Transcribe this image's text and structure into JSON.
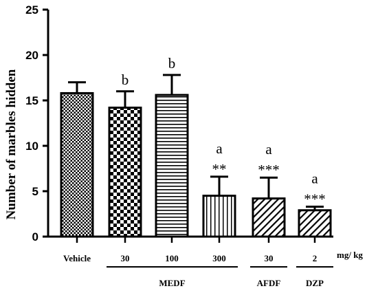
{
  "chart_data": {
    "type": "bar",
    "ylabel": "Number of marbles hidden",
    "ylim": [
      0,
      25
    ],
    "yticks": [
      0,
      5,
      10,
      15,
      20,
      25
    ],
    "unit_label": "mg/ kg",
    "bars": [
      {
        "label": "Vehicle",
        "value": 15.8,
        "error": 1.2,
        "pattern": "dots",
        "letter": "",
        "stars": ""
      },
      {
        "label": "30",
        "value": 14.2,
        "error": 1.8,
        "pattern": "checker",
        "letter": "b",
        "stars": ""
      },
      {
        "label": "100",
        "value": 15.6,
        "error": 2.2,
        "pattern": "hlines",
        "letter": "b",
        "stars": ""
      },
      {
        "label": "300",
        "value": 4.5,
        "error": 2.1,
        "pattern": "vlines",
        "letter": "a",
        "stars": "**"
      },
      {
        "label": "30",
        "value": 4.2,
        "error": 2.3,
        "pattern": "diag",
        "letter": "a",
        "stars": "***"
      },
      {
        "label": "2",
        "value": 2.9,
        "error": 0.4,
        "pattern": "diag",
        "letter": "a",
        "stars": "***"
      }
    ],
    "groups": [
      {
        "name": "MEDF",
        "from": 1,
        "to": 3
      },
      {
        "name": "AFDF",
        "from": 4,
        "to": 4
      },
      {
        "name": "DZP",
        "from": 5,
        "to": 5
      }
    ]
  }
}
